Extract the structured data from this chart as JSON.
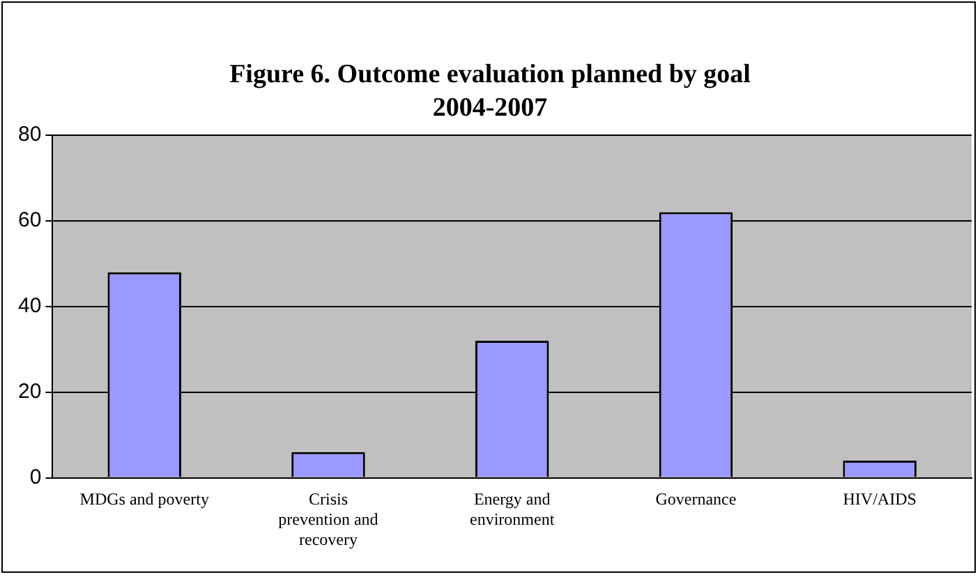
{
  "chart_data": {
    "type": "bar",
    "title": "Figure 6. Outcome evaluation planned by goal 2004-2007",
    "categories": [
      "MDGs and poverty",
      "Crisis prevention and recovery",
      "Energy and environment",
      "Governance",
      "HIV/AIDS"
    ],
    "values": [
      48,
      6,
      32,
      62,
      4
    ],
    "color": "#9999ff",
    "ylim": [
      0,
      80
    ],
    "yticks": [
      0,
      20,
      40,
      60,
      80
    ],
    "grid": "y",
    "legend": false
  }
}
